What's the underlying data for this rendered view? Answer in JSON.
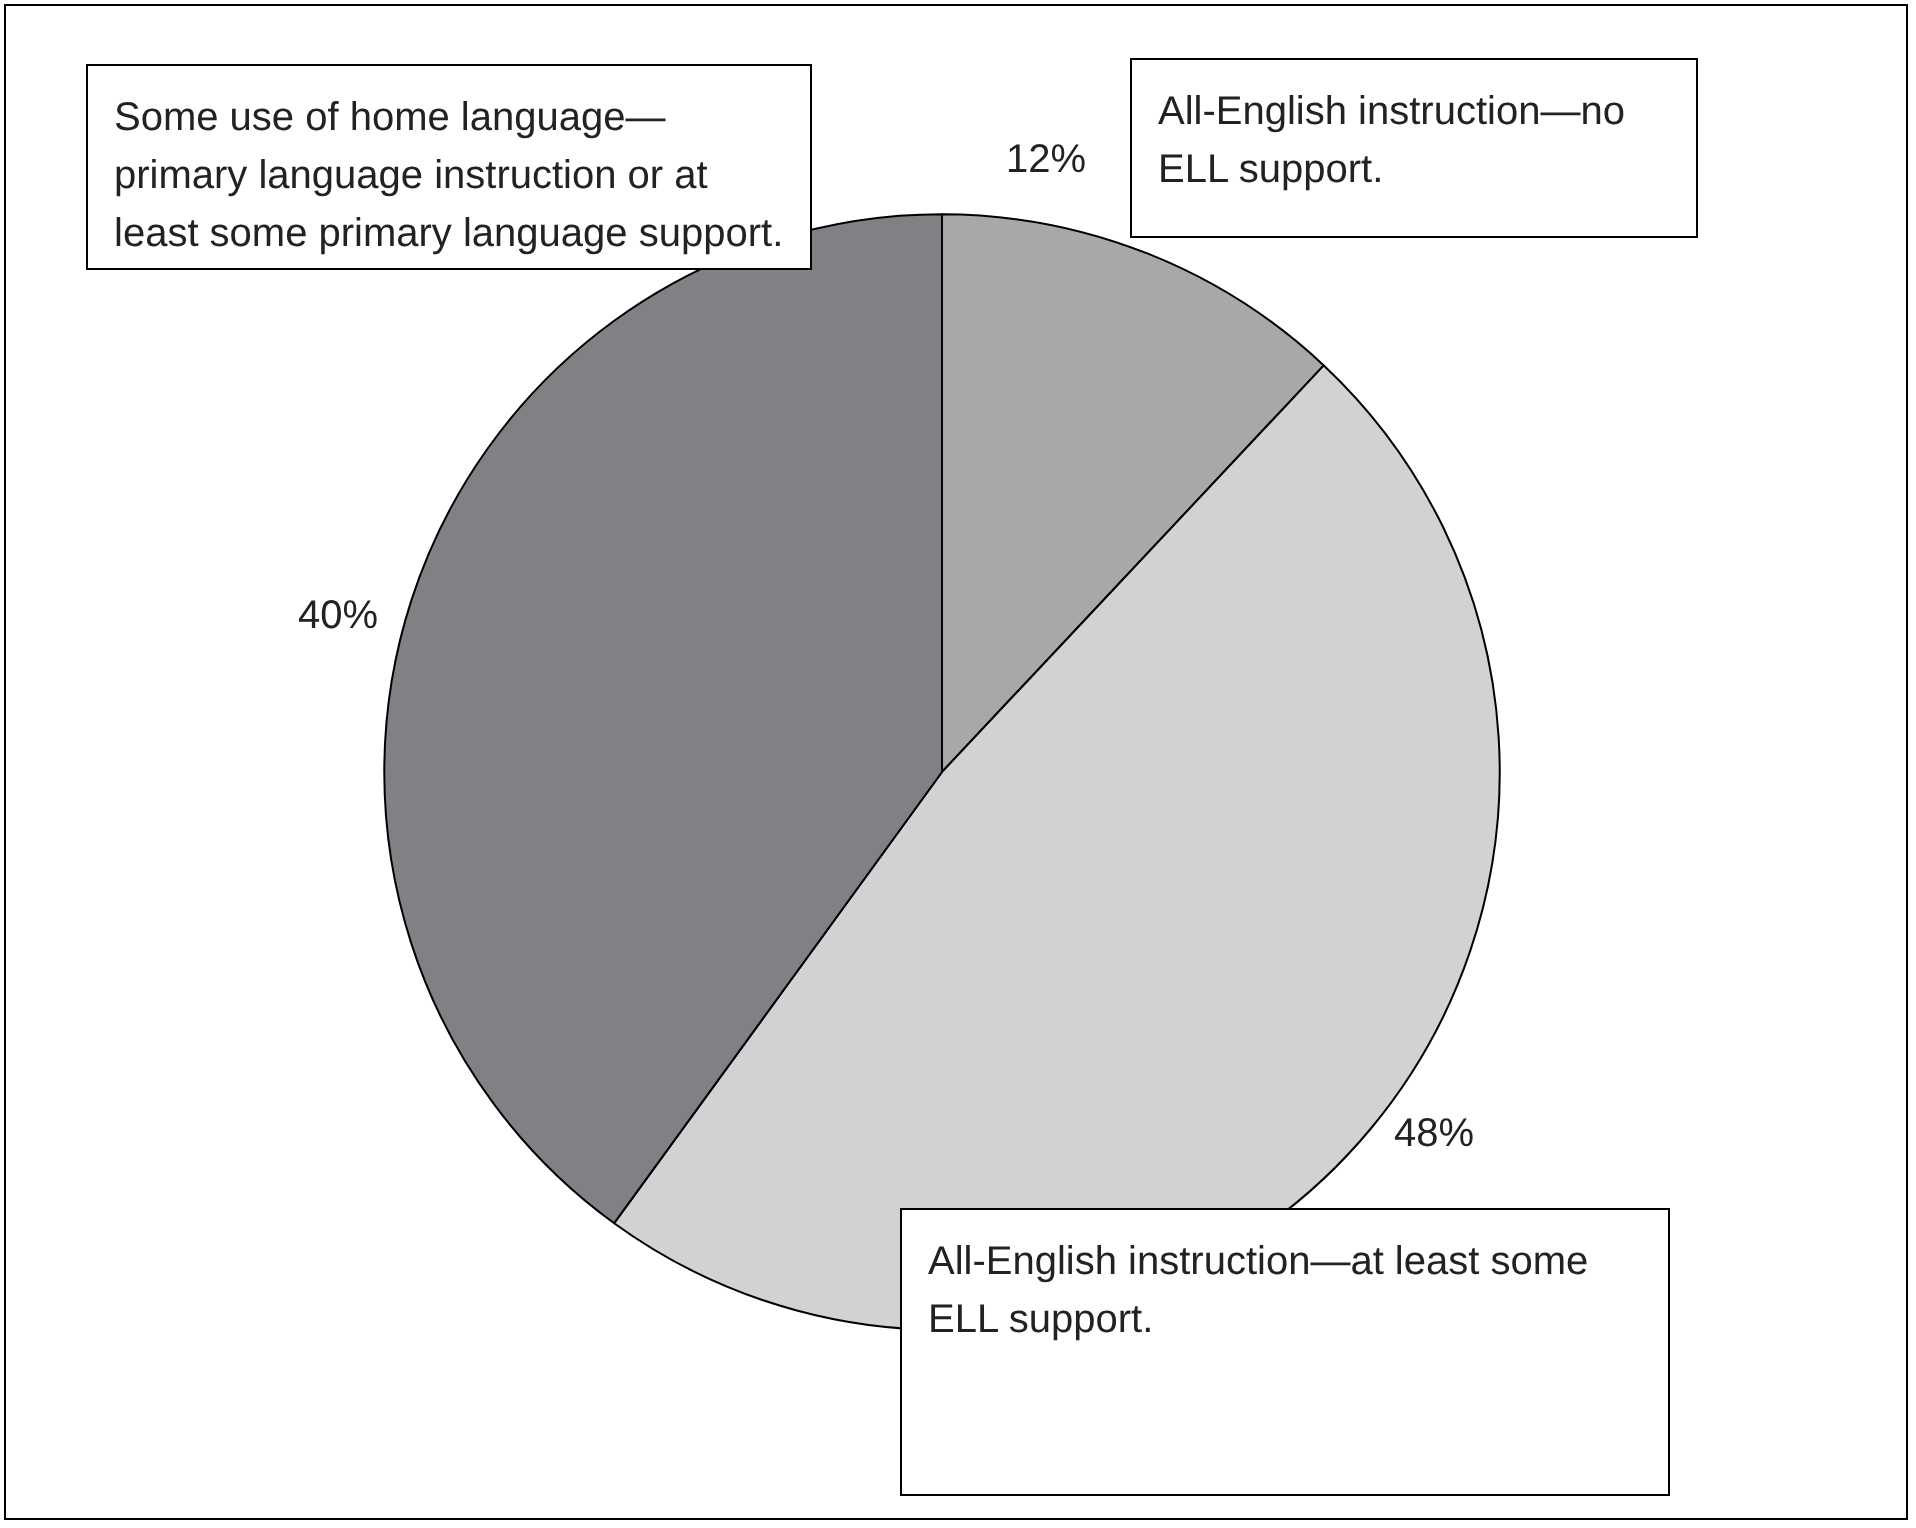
{
  "chart_data": {
    "type": "pie",
    "categories": [
      "All-English instruction—no ELL support.",
      "All-English instruction—at least some ELL support.",
      "Some use of home language—primary language instruction or at least some primary language support."
    ],
    "values": [
      12,
      48,
      40
    ],
    "colors": [
      "#a7a8aa",
      "#d1d2d4",
      "#808184"
    ],
    "value_labels": [
      "12%",
      "48%",
      "40%"
    ],
    "legend": false
  }
}
